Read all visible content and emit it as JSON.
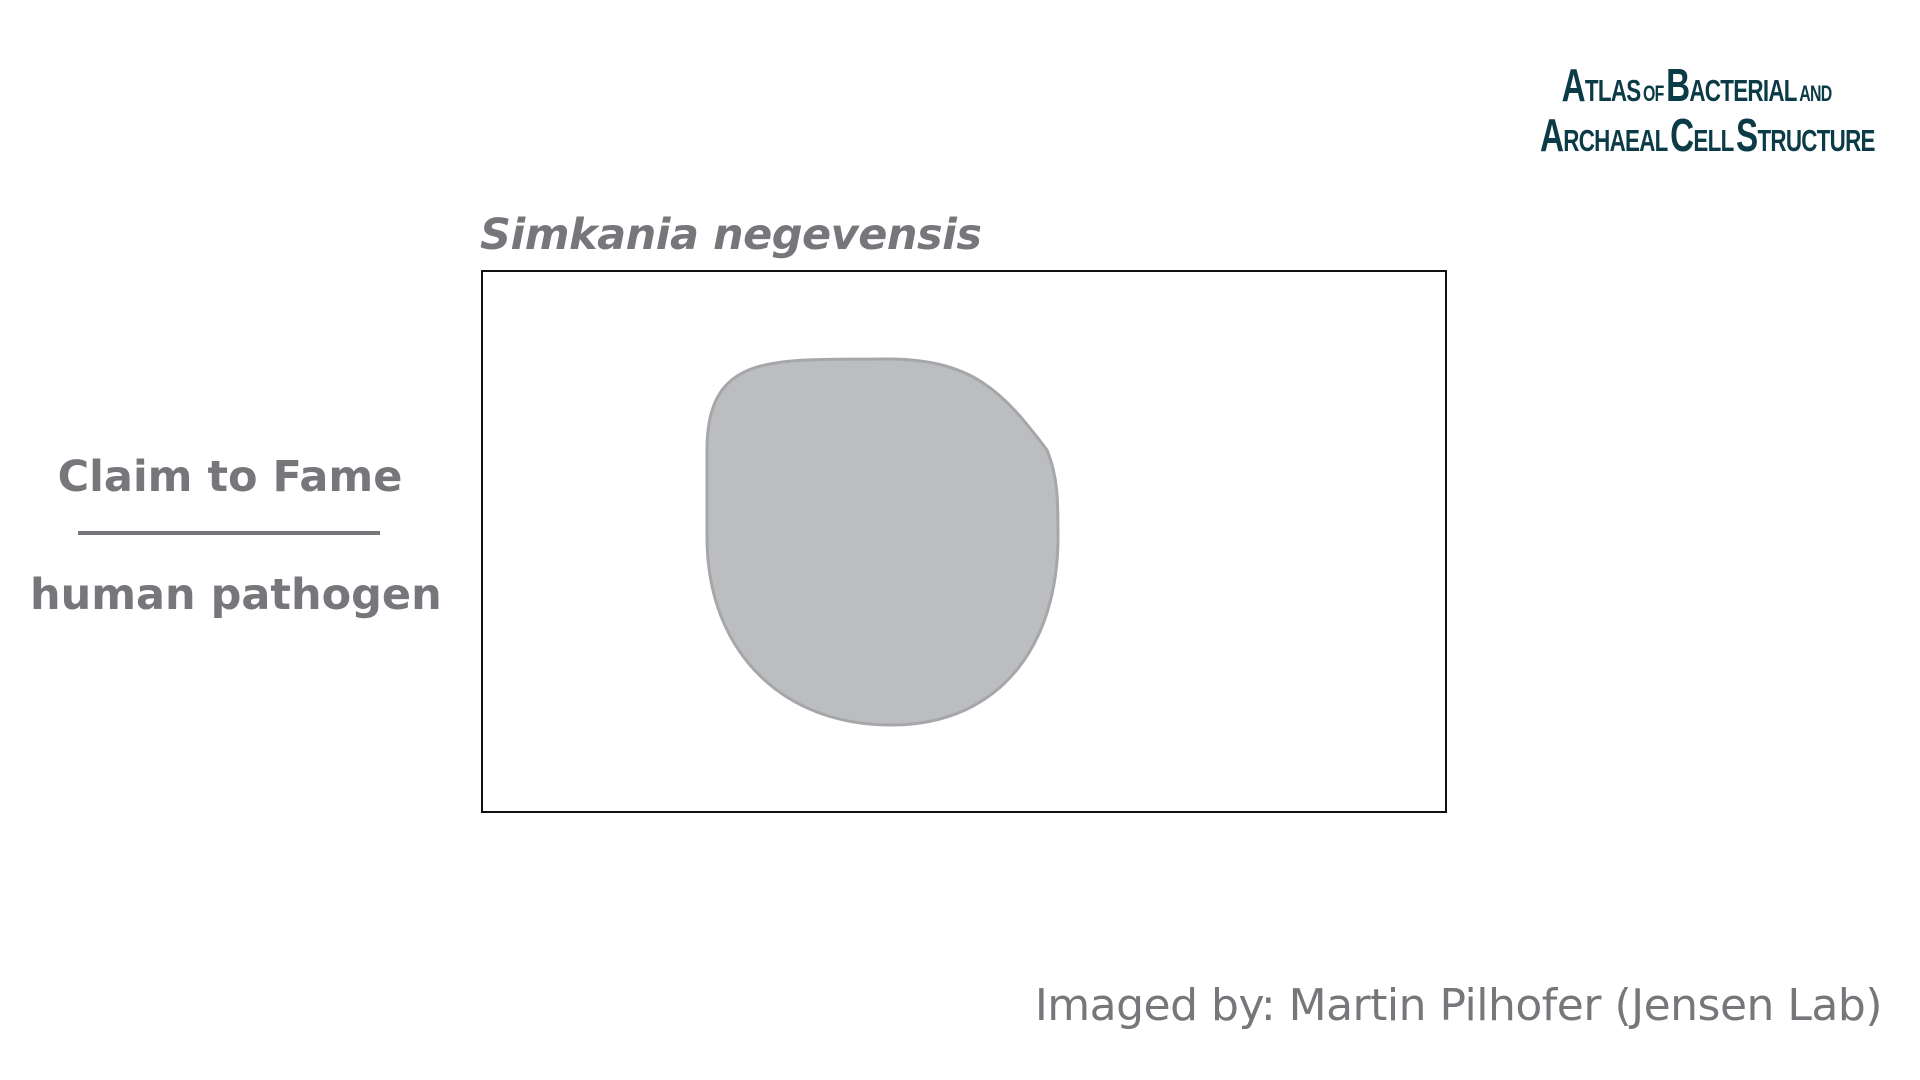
{
  "logo": {
    "line1": {
      "a": "A",
      "tlas": "TLAS",
      "of": "OF",
      "b": "B",
      "acterial": "ACTERIAL",
      "and": "AND"
    },
    "line2": {
      "a": "A",
      "rchaeal": "RCHAEAL",
      "c": "C",
      "ell": "ELL",
      "s": "S",
      "tructure": "TRUCTURE"
    },
    "color": "#0b3b47"
  },
  "species_name": "Simkania negevensis",
  "claim_to_fame": {
    "title": "Claim to Fame",
    "value": "human pathogen"
  },
  "credit": "Imaged by: Martin Pilhofer (Jensen Lab)",
  "colors": {
    "text_gray": "#76777a",
    "cell_fill": "#bcbdbf",
    "cell_stroke": "#a6a7aa",
    "frame": "#111111"
  }
}
